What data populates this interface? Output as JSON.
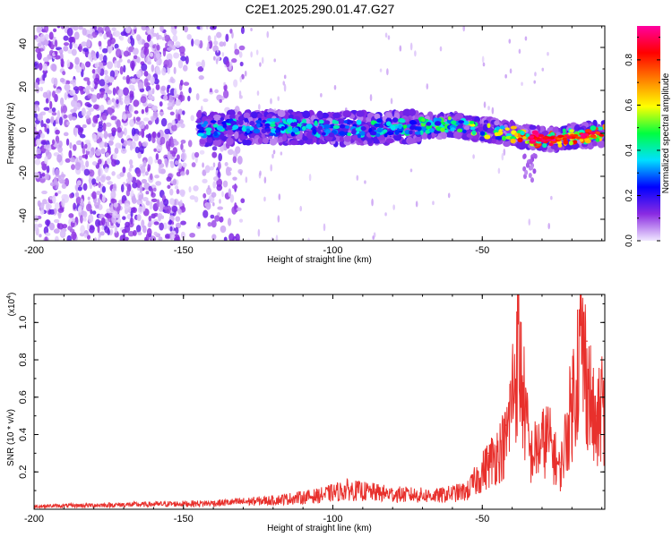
{
  "title": "C2E1.2025.290.01.47.G27",
  "chart_data": [
    {
      "type": "heatmap",
      "name": "spectrogram",
      "xlabel": "Height of straight line (km)",
      "ylabel": "Frequency (Hz)",
      "xlim": [
        -200,
        -9
      ],
      "ylim": [
        -50,
        50
      ],
      "xticks": [
        -200,
        -150,
        -100,
        -50
      ],
      "yticks": [
        -40,
        -20,
        0,
        20,
        40
      ],
      "colorbar": {
        "label": "Normalized spectral amplitude",
        "range": [
          0.0,
          0.95
        ],
        "ticks": [
          "0.0",
          "0.2",
          "0.4",
          "0.6",
          "0.8"
        ],
        "colormap": [
          "#f0e8ff",
          "#8a2be2",
          "#0000ff",
          "#00e0ff",
          "#00ff40",
          "#ffff00",
          "#ff8000",
          "#ff0000",
          "#ff00a0"
        ]
      },
      "features": {
        "noise_region_x": [
          -200,
          -145
        ],
        "signal_band": [
          {
            "x": -145,
            "freq": 2,
            "amp": 0.35
          },
          {
            "x": -120,
            "freq": 3,
            "amp": 0.4
          },
          {
            "x": -100,
            "freq": 2,
            "amp": 0.4
          },
          {
            "x": -75,
            "freq": 3,
            "amp": 0.45
          },
          {
            "x": -60,
            "freq": 4,
            "amp": 0.5
          },
          {
            "x": -45,
            "freq": 1,
            "amp": 0.6
          },
          {
            "x": -30,
            "freq": -3,
            "amp": 0.9
          },
          {
            "x": -9,
            "freq": 0,
            "amp": 0.7
          }
        ]
      }
    },
    {
      "type": "line",
      "name": "snr",
      "xlabel": "Height of straight line (km)",
      "ylabel": "SNR (10 * v/v)",
      "y_multiplier_label": "(x10",
      "y_multiplier_exp": "4",
      "y_multiplier_close": ")",
      "xlim": [
        -200,
        -9
      ],
      "ylim": [
        0,
        1.15
      ],
      "xticks": [
        -200,
        -150,
        -100,
        -50
      ],
      "yticks": [
        0.2,
        0.4,
        0.6,
        0.8,
        1.0
      ],
      "ytick_labels": [
        "0.2",
        "0.4",
        "0.6",
        "0.8",
        "1.0"
      ],
      "color": "#e8302c",
      "series": [
        {
          "x": -200,
          "y": 0.02
        },
        {
          "x": -170,
          "y": 0.03
        },
        {
          "x": -140,
          "y": 0.04
        },
        {
          "x": -120,
          "y": 0.06
        },
        {
          "x": -105,
          "y": 0.09
        },
        {
          "x": -95,
          "y": 0.13
        },
        {
          "x": -80,
          "y": 0.1
        },
        {
          "x": -65,
          "y": 0.09
        },
        {
          "x": -55,
          "y": 0.12
        },
        {
          "x": -48,
          "y": 0.3
        },
        {
          "x": -42,
          "y": 0.45
        },
        {
          "x": -38,
          "y": 1.07
        },
        {
          "x": -34,
          "y": 0.35
        },
        {
          "x": -28,
          "y": 0.48
        },
        {
          "x": -24,
          "y": 0.25
        },
        {
          "x": -20,
          "y": 0.7
        },
        {
          "x": -17,
          "y": 1.13
        },
        {
          "x": -15,
          "y": 0.9
        },
        {
          "x": -12,
          "y": 0.5
        },
        {
          "x": -10,
          "y": 0.7
        },
        {
          "x": -9,
          "y": 0.65
        }
      ]
    }
  ]
}
